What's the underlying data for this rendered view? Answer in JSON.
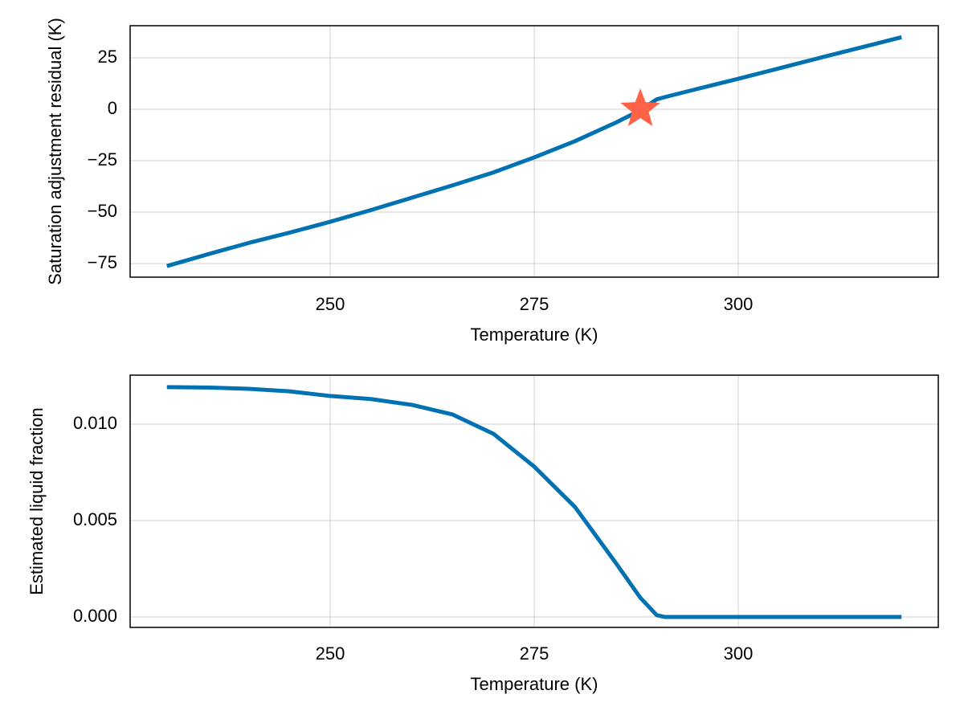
{
  "chart_data": [
    {
      "type": "line",
      "xlabel": "Temperature (K)",
      "ylabel": "Saturation adjustment residual (K)",
      "x": [
        230,
        235,
        240,
        245,
        250,
        255,
        260,
        265,
        270,
        275,
        280,
        285,
        288,
        290,
        291,
        295,
        300,
        305,
        310,
        315,
        320
      ],
      "series": [
        {
          "color": "#0072b2",
          "values": [
            -76.2,
            -70.5,
            -65,
            -60,
            -54.7,
            -49,
            -43,
            -37,
            -30.7,
            -23.4,
            -15.5,
            -6.5,
            -0.5,
            4.8,
            5.9,
            9.9,
            14.8,
            19.9,
            25,
            30,
            35
          ]
        }
      ],
      "points": {
        "x": [
          288
        ],
        "y": [
          0
        ],
        "color": "#ff6347",
        "marker": "star"
      },
      "xlim": [
        225.5,
        324.5
      ],
      "xticks": [
        250,
        275,
        300
      ],
      "ylim": [
        -81.6,
        40.6
      ],
      "yticks": [
        {
          "value": -75,
          "label": "−75"
        },
        {
          "value": -50,
          "label": "−50"
        },
        {
          "value": -25,
          "label": "−25"
        },
        0,
        25
      ],
      "grid": true
    },
    {
      "type": "line",
      "xlabel": "Temperature (K)",
      "ylabel": "Estimated liquid fraction",
      "x": [
        230,
        235,
        240,
        245,
        250,
        255,
        260,
        265,
        270,
        275,
        280,
        285,
        288,
        290,
        291,
        295,
        300,
        305,
        310,
        315,
        320
      ],
      "series": [
        {
          "color": "#0072b2",
          "values": [
            0.01192,
            0.0119,
            0.01183,
            0.0117,
            0.01146,
            0.0113,
            0.011,
            0.0105,
            0.0095,
            0.0078,
            0.0057,
            0.0028,
            0.001,
            0.0001,
            0,
            0,
            0,
            0,
            0,
            0,
            0
          ]
        }
      ],
      "xlim": [
        225.5,
        324.5
      ],
      "xticks": [
        250,
        275,
        300
      ],
      "ylim": [
        -0.00054,
        0.01254
      ],
      "yticks": [
        {
          "value": 0,
          "label": "0.000"
        },
        {
          "value": 0.005,
          "label": "0.005"
        },
        {
          "value": 0.01,
          "label": "0.010"
        }
      ],
      "grid": true
    }
  ]
}
